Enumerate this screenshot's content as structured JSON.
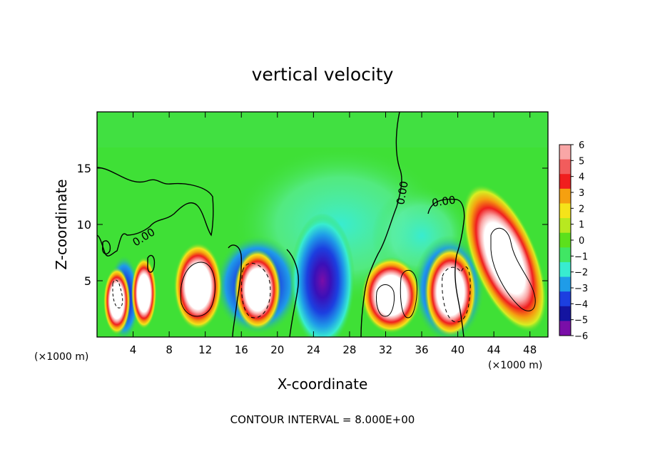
{
  "chart_data": {
    "type": "heatmap",
    "title": "vertical velocity",
    "xlabel": "X-coordinate",
    "ylabel": "Z-coordinate",
    "x_unit_left": "(×1000 m)",
    "x_unit_right": "(×1000 m)",
    "footer": "CONTOUR INTERVAL = 8.000E+00",
    "xlim": [
      0,
      50
    ],
    "ylim": [
      0,
      20
    ],
    "x_ticks": [
      4,
      8,
      12,
      16,
      20,
      24,
      28,
      32,
      36,
      40,
      44,
      48
    ],
    "y_ticks": [
      5,
      10,
      15
    ],
    "contour_labels": [
      "0.00",
      "0.00",
      "0.00"
    ],
    "colorbar": {
      "ticks": [
        "6",
        "5",
        "4",
        "3",
        "2",
        "1",
        "0",
        "-1",
        "-2",
        "-3",
        "-4",
        "-5",
        "-6"
      ],
      "colors": [
        "#f9a6a6",
        "#f25c5c",
        "#f01e1e",
        "#f5a010",
        "#f5e31a",
        "#b8e820",
        "#5ce01c",
        "#40e664",
        "#38ecd0",
        "#1f9ce8",
        "#1c3fe0",
        "#1414a0",
        "#7a0ea8"
      ]
    },
    "background_color": "#3fe036",
    "features": [
      {
        "kind": "updraft",
        "x": 2.2,
        "z": 3.2,
        "rx": 1.5,
        "rz": 3.0,
        "strength": 1
      },
      {
        "kind": "updraft",
        "x": 5.2,
        "z": 3.9,
        "rx": 1.4,
        "rz": 3.2,
        "strength": 1
      },
      {
        "kind": "updraft",
        "x": 11.2,
        "z": 4.5,
        "rx": 2.7,
        "rz": 3.9,
        "strength": 1
      },
      {
        "kind": "updraft",
        "x": 17.8,
        "z": 4.2,
        "rx": 2.6,
        "rz": 3.6,
        "strength": 1
      },
      {
        "kind": "downdraft",
        "x": 25.0,
        "z": 5.0,
        "rx": 3.6,
        "rz": 6.0,
        "strength": 1
      },
      {
        "kind": "updraft",
        "x": 32.6,
        "z": 3.7,
        "rx": 3.3,
        "rz": 3.4,
        "strength": 1
      },
      {
        "kind": "updraft",
        "x": 39.2,
        "z": 4.0,
        "rx": 2.9,
        "rz": 4.0,
        "strength": 1
      },
      {
        "kind": "updraft",
        "x": 45.2,
        "z": 7.0,
        "rx": 3.6,
        "rz": 7.0,
        "strength": 1
      }
    ]
  }
}
